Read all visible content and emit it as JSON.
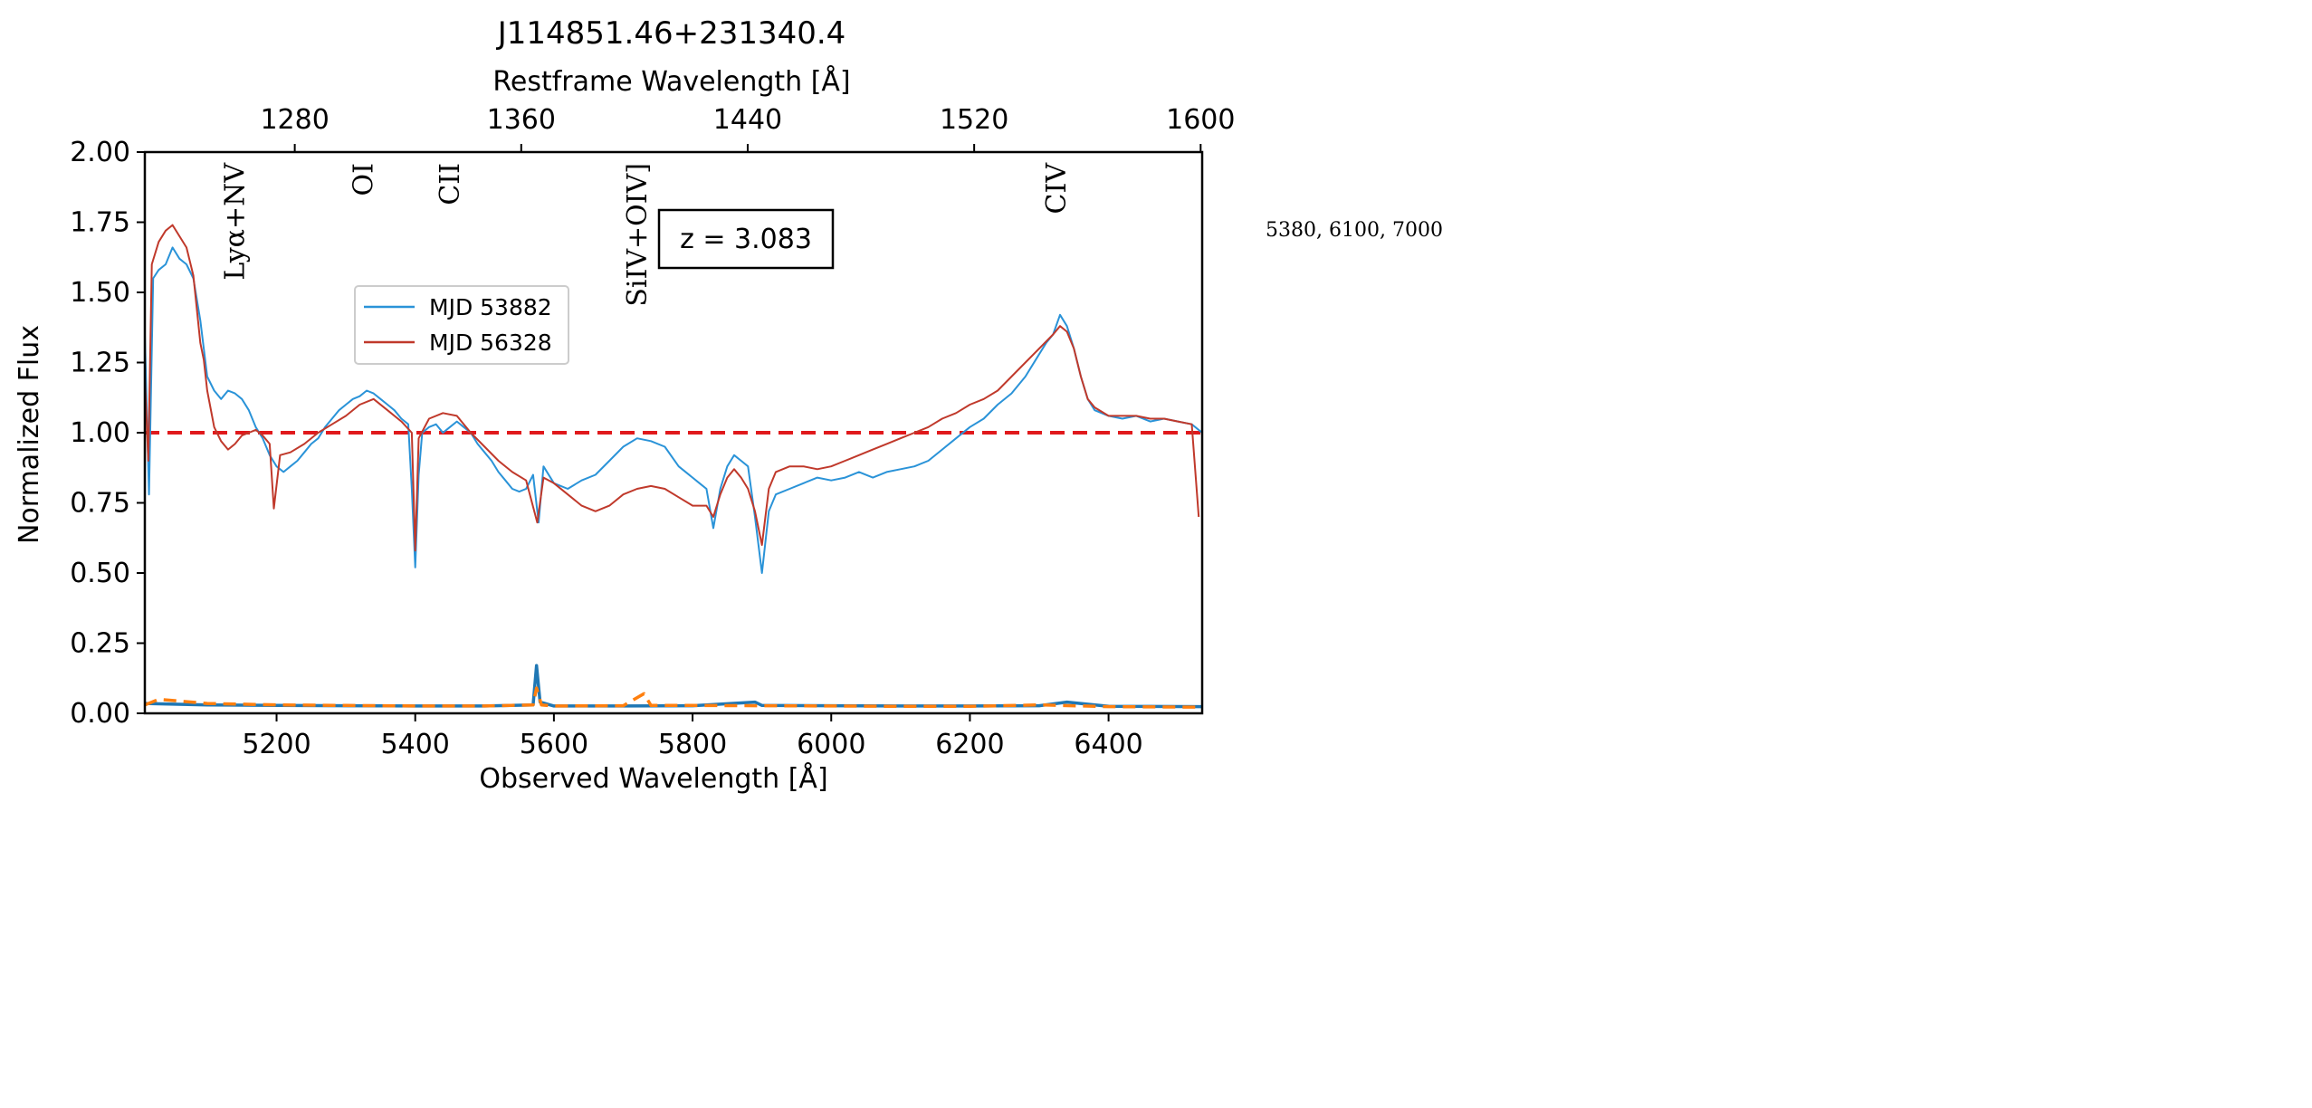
{
  "note_text": "5380, 6100, 7000",
  "chart_data": {
    "type": "line",
    "title": "J114851.46+231340.4",
    "xlabel": "Observed Wavelength [Å]",
    "ylabel": "Normalized Flux",
    "x2label": "Restframe Wavelength [Å]",
    "xlim": [
      5010,
      6535
    ],
    "ylim": [
      0,
      2.0
    ],
    "xticks": [
      5200,
      5400,
      5600,
      5800,
      6000,
      6200,
      6400
    ],
    "yticks": [
      0.0,
      0.25,
      0.5,
      0.75,
      1.0,
      1.25,
      1.5,
      1.75,
      2.0
    ],
    "ytick_labels": [
      "0.00",
      "0.25",
      "0.50",
      "0.75",
      "1.00",
      "1.25",
      "1.50",
      "1.75",
      "2.00"
    ],
    "redshift": 3.083,
    "x2ticks": [
      1280,
      1360,
      1440,
      1520,
      1600
    ],
    "annotation": "z = 3.083",
    "reference_line": {
      "y": 1.0,
      "color": "#e0191c",
      "style": "dashed"
    },
    "line_labels": [
      {
        "text": "Lyα+NV",
        "x": 5140
      },
      {
        "text": "OI",
        "x": 5325
      },
      {
        "text": "CII",
        "x": 5450
      },
      {
        "text": "SiIV+OIV]",
        "x": 5720
      },
      {
        "text": "CIV",
        "x": 6325
      }
    ],
    "legend": {
      "location": "upper-left-center"
    },
    "series": [
      {
        "name": "MJD 53882",
        "color": "#2a93d8",
        "points": [
          [
            5010,
            1.35
          ],
          [
            5016,
            0.78
          ],
          [
            5022,
            1.55
          ],
          [
            5030,
            1.58
          ],
          [
            5040,
            1.6
          ],
          [
            5050,
            1.66
          ],
          [
            5060,
            1.62
          ],
          [
            5070,
            1.6
          ],
          [
            5080,
            1.55
          ],
          [
            5090,
            1.4
          ],
          [
            5100,
            1.2
          ],
          [
            5110,
            1.15
          ],
          [
            5120,
            1.12
          ],
          [
            5130,
            1.15
          ],
          [
            5140,
            1.14
          ],
          [
            5150,
            1.12
          ],
          [
            5160,
            1.08
          ],
          [
            5170,
            1.02
          ],
          [
            5180,
            0.98
          ],
          [
            5190,
            0.92
          ],
          [
            5200,
            0.88
          ],
          [
            5210,
            0.86
          ],
          [
            5220,
            0.88
          ],
          [
            5230,
            0.9
          ],
          [
            5240,
            0.93
          ],
          [
            5250,
            0.96
          ],
          [
            5260,
            0.98
          ],
          [
            5270,
            1.02
          ],
          [
            5280,
            1.05
          ],
          [
            5290,
            1.08
          ],
          [
            5300,
            1.1
          ],
          [
            5310,
            1.12
          ],
          [
            5320,
            1.13
          ],
          [
            5330,
            1.15
          ],
          [
            5340,
            1.14
          ],
          [
            5350,
            1.12
          ],
          [
            5360,
            1.1
          ],
          [
            5370,
            1.08
          ],
          [
            5380,
            1.05
          ],
          [
            5390,
            1.03
          ],
          [
            5395,
            0.8
          ],
          [
            5400,
            0.52
          ],
          [
            5405,
            0.85
          ],
          [
            5410,
            1.0
          ],
          [
            5420,
            1.02
          ],
          [
            5430,
            1.03
          ],
          [
            5440,
            1.0
          ],
          [
            5450,
            1.02
          ],
          [
            5460,
            1.04
          ],
          [
            5470,
            1.02
          ],
          [
            5480,
            1.0
          ],
          [
            5490,
            0.96
          ],
          [
            5500,
            0.93
          ],
          [
            5510,
            0.9
          ],
          [
            5520,
            0.86
          ],
          [
            5530,
            0.83
          ],
          [
            5540,
            0.8
          ],
          [
            5550,
            0.79
          ],
          [
            5560,
            0.8
          ],
          [
            5570,
            0.85
          ],
          [
            5578,
            0.68
          ],
          [
            5585,
            0.88
          ],
          [
            5600,
            0.82
          ],
          [
            5620,
            0.8
          ],
          [
            5640,
            0.83
          ],
          [
            5660,
            0.85
          ],
          [
            5680,
            0.9
          ],
          [
            5700,
            0.95
          ],
          [
            5720,
            0.98
          ],
          [
            5740,
            0.97
          ],
          [
            5760,
            0.95
          ],
          [
            5780,
            0.88
          ],
          [
            5800,
            0.84
          ],
          [
            5810,
            0.82
          ],
          [
            5820,
            0.8
          ],
          [
            5830,
            0.66
          ],
          [
            5840,
            0.8
          ],
          [
            5850,
            0.88
          ],
          [
            5860,
            0.92
          ],
          [
            5870,
            0.9
          ],
          [
            5880,
            0.88
          ],
          [
            5890,
            0.7
          ],
          [
            5900,
            0.5
          ],
          [
            5910,
            0.72
          ],
          [
            5920,
            0.78
          ],
          [
            5940,
            0.8
          ],
          [
            5960,
            0.82
          ],
          [
            5980,
            0.84
          ],
          [
            6000,
            0.83
          ],
          [
            6020,
            0.84
          ],
          [
            6040,
            0.86
          ],
          [
            6060,
            0.84
          ],
          [
            6080,
            0.86
          ],
          [
            6100,
            0.87
          ],
          [
            6120,
            0.88
          ],
          [
            6140,
            0.9
          ],
          [
            6160,
            0.94
          ],
          [
            6180,
            0.98
          ],
          [
            6200,
            1.02
          ],
          [
            6220,
            1.05
          ],
          [
            6240,
            1.1
          ],
          [
            6260,
            1.14
          ],
          [
            6280,
            1.2
          ],
          [
            6300,
            1.28
          ],
          [
            6310,
            1.32
          ],
          [
            6320,
            1.35
          ],
          [
            6330,
            1.42
          ],
          [
            6340,
            1.38
          ],
          [
            6350,
            1.3
          ],
          [
            6360,
            1.2
          ],
          [
            6370,
            1.12
          ],
          [
            6380,
            1.08
          ],
          [
            6400,
            1.06
          ],
          [
            6420,
            1.05
          ],
          [
            6440,
            1.06
          ],
          [
            6460,
            1.04
          ],
          [
            6480,
            1.05
          ],
          [
            6500,
            1.04
          ],
          [
            6520,
            1.03
          ],
          [
            6535,
            1.0
          ]
        ]
      },
      {
        "name": "MJD 56328",
        "color": "#c0392b",
        "points": [
          [
            5010,
            1.2
          ],
          [
            5015,
            0.9
          ],
          [
            5020,
            1.6
          ],
          [
            5030,
            1.68
          ],
          [
            5040,
            1.72
          ],
          [
            5050,
            1.74
          ],
          [
            5060,
            1.7
          ],
          [
            5070,
            1.66
          ],
          [
            5080,
            1.56
          ],
          [
            5090,
            1.32
          ],
          [
            5095,
            1.26
          ],
          [
            5100,
            1.15
          ],
          [
            5110,
            1.02
          ],
          [
            5120,
            0.97
          ],
          [
            5130,
            0.94
          ],
          [
            5140,
            0.96
          ],
          [
            5150,
            0.99
          ],
          [
            5160,
            1.0
          ],
          [
            5170,
            1.01
          ],
          [
            5180,
            0.99
          ],
          [
            5190,
            0.96
          ],
          [
            5196,
            0.73
          ],
          [
            5205,
            0.92
          ],
          [
            5220,
            0.93
          ],
          [
            5240,
            0.96
          ],
          [
            5260,
            1.0
          ],
          [
            5280,
            1.03
          ],
          [
            5300,
            1.06
          ],
          [
            5320,
            1.1
          ],
          [
            5340,
            1.12
          ],
          [
            5360,
            1.08
          ],
          [
            5380,
            1.04
          ],
          [
            5395,
            1.0
          ],
          [
            5400,
            0.58
          ],
          [
            5405,
            0.98
          ],
          [
            5420,
            1.05
          ],
          [
            5440,
            1.07
          ],
          [
            5460,
            1.06
          ],
          [
            5480,
            1.0
          ],
          [
            5500,
            0.95
          ],
          [
            5520,
            0.9
          ],
          [
            5540,
            0.86
          ],
          [
            5560,
            0.83
          ],
          [
            5576,
            0.68
          ],
          [
            5585,
            0.84
          ],
          [
            5600,
            0.82
          ],
          [
            5620,
            0.78
          ],
          [
            5640,
            0.74
          ],
          [
            5660,
            0.72
          ],
          [
            5680,
            0.74
          ],
          [
            5700,
            0.78
          ],
          [
            5720,
            0.8
          ],
          [
            5740,
            0.81
          ],
          [
            5760,
            0.8
          ],
          [
            5780,
            0.77
          ],
          [
            5800,
            0.74
          ],
          [
            5820,
            0.74
          ],
          [
            5830,
            0.7
          ],
          [
            5840,
            0.78
          ],
          [
            5850,
            0.84
          ],
          [
            5860,
            0.87
          ],
          [
            5870,
            0.84
          ],
          [
            5880,
            0.8
          ],
          [
            5890,
            0.72
          ],
          [
            5900,
            0.6
          ],
          [
            5910,
            0.8
          ],
          [
            5920,
            0.86
          ],
          [
            5940,
            0.88
          ],
          [
            5960,
            0.88
          ],
          [
            5980,
            0.87
          ],
          [
            6000,
            0.88
          ],
          [
            6020,
            0.9
          ],
          [
            6040,
            0.92
          ],
          [
            6060,
            0.94
          ],
          [
            6080,
            0.96
          ],
          [
            6100,
            0.98
          ],
          [
            6120,
            1.0
          ],
          [
            6140,
            1.02
          ],
          [
            6160,
            1.05
          ],
          [
            6180,
            1.07
          ],
          [
            6200,
            1.1
          ],
          [
            6220,
            1.12
          ],
          [
            6240,
            1.15
          ],
          [
            6260,
            1.2
          ],
          [
            6280,
            1.25
          ],
          [
            6300,
            1.3
          ],
          [
            6320,
            1.35
          ],
          [
            6330,
            1.38
          ],
          [
            6340,
            1.36
          ],
          [
            6350,
            1.3
          ],
          [
            6360,
            1.2
          ],
          [
            6370,
            1.12
          ],
          [
            6380,
            1.09
          ],
          [
            6400,
            1.06
          ],
          [
            6420,
            1.06
          ],
          [
            6440,
            1.06
          ],
          [
            6460,
            1.05
          ],
          [
            6480,
            1.05
          ],
          [
            6500,
            1.04
          ],
          [
            6520,
            1.03
          ],
          [
            6530,
            0.7
          ]
        ]
      },
      {
        "name": "",
        "color": "#1f77b4",
        "style": "solid",
        "points": [
          [
            5010,
            0.035
          ],
          [
            5100,
            0.03
          ],
          [
            5200,
            0.028
          ],
          [
            5300,
            0.027
          ],
          [
            5400,
            0.026
          ],
          [
            5500,
            0.026
          ],
          [
            5570,
            0.03
          ],
          [
            5575,
            0.17
          ],
          [
            5580,
            0.04
          ],
          [
            5600,
            0.026
          ],
          [
            5700,
            0.026
          ],
          [
            5800,
            0.027
          ],
          [
            5890,
            0.04
          ],
          [
            5900,
            0.028
          ],
          [
            6000,
            0.027
          ],
          [
            6100,
            0.026
          ],
          [
            6200,
            0.026
          ],
          [
            6300,
            0.027
          ],
          [
            6340,
            0.04
          ],
          [
            6400,
            0.025
          ],
          [
            6535,
            0.024
          ]
        ]
      },
      {
        "name": "",
        "color": "#ff7f0e",
        "style": "dashed",
        "points": [
          [
            5010,
            0.03
          ],
          [
            5030,
            0.05
          ],
          [
            5100,
            0.035
          ],
          [
            5200,
            0.03
          ],
          [
            5300,
            0.028
          ],
          [
            5400,
            0.026
          ],
          [
            5500,
            0.026
          ],
          [
            5570,
            0.03
          ],
          [
            5575,
            0.09
          ],
          [
            5582,
            0.03
          ],
          [
            5600,
            0.026
          ],
          [
            5700,
            0.027
          ],
          [
            5730,
            0.07
          ],
          [
            5740,
            0.028
          ],
          [
            5800,
            0.028
          ],
          [
            5900,
            0.027
          ],
          [
            6000,
            0.026
          ],
          [
            6100,
            0.025
          ],
          [
            6200,
            0.025
          ],
          [
            6300,
            0.03
          ],
          [
            6400,
            0.024
          ],
          [
            6535,
            0.022
          ]
        ]
      }
    ]
  }
}
